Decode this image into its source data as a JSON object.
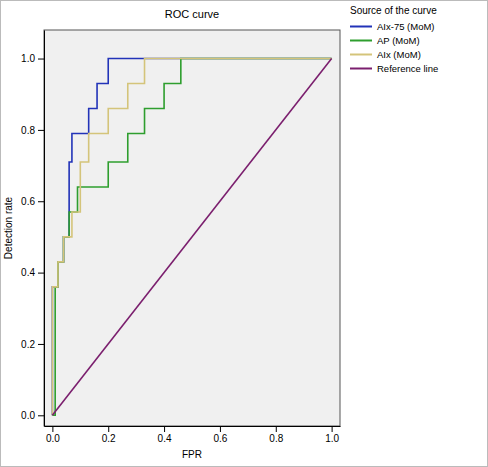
{
  "chart_data": {
    "type": "line",
    "title": "ROC curve",
    "x_label": "FPR",
    "y_label": "Detection rate",
    "legend_title": "Source of the curve",
    "legend": "outside-top-right",
    "grid": false,
    "xlim": [
      -0.03,
      1.03
    ],
    "ylim": [
      -0.03,
      1.08
    ],
    "xticks": [
      {
        "value": 0,
        "label": "0.0"
      },
      {
        "value": 0.2,
        "label": "0.2"
      },
      {
        "value": 0.4,
        "label": "0.4"
      },
      {
        "value": 0.6,
        "label": "0.6"
      },
      {
        "value": 0.8,
        "label": "0.8"
      },
      {
        "value": 1,
        "label": "1.0"
      }
    ],
    "yticks": [
      {
        "value": 0,
        "label": "0.0"
      },
      {
        "value": 0.2,
        "label": "0.2"
      },
      {
        "value": 0.4,
        "label": "0.4"
      },
      {
        "value": 0.6,
        "label": "0.6"
      },
      {
        "value": 0.8,
        "label": "0.8"
      },
      {
        "value": 1,
        "label": "1.0"
      }
    ],
    "series": [
      {
        "name": "AIx-75 (MoM)",
        "color": "#2233b8",
        "x": [
          0,
          0,
          0.02,
          0.02,
          0.04,
          0.04,
          0.06,
          0.06,
          0.07,
          0.07,
          0.13,
          0.13,
          0.16,
          0.16,
          0.2,
          0.2,
          1.0
        ],
        "values": [
          0,
          0.36,
          0.36,
          0.43,
          0.43,
          0.5,
          0.5,
          0.71,
          0.71,
          0.79,
          0.79,
          0.86,
          0.86,
          0.93,
          0.93,
          1.0,
          1.0
        ]
      },
      {
        "name": "AP (MoM)",
        "color": "#2e9e2e",
        "x": [
          0,
          0.01,
          0.01,
          0.02,
          0.02,
          0.04,
          0.04,
          0.06,
          0.06,
          0.09,
          0.09,
          0.2,
          0.2,
          0.27,
          0.27,
          0.33,
          0.33,
          0.4,
          0.4,
          0.46,
          0.46,
          1.0
        ],
        "values": [
          0,
          0,
          0.36,
          0.36,
          0.43,
          0.43,
          0.5,
          0.5,
          0.57,
          0.57,
          0.64,
          0.64,
          0.71,
          0.71,
          0.79,
          0.79,
          0.86,
          0.86,
          0.93,
          0.93,
          1.0,
          1.0
        ]
      },
      {
        "name": "AIx (MoM)",
        "color": "#d4c47a",
        "x": [
          0,
          0,
          0.02,
          0.02,
          0.04,
          0.04,
          0.07,
          0.07,
          0.1,
          0.1,
          0.13,
          0.13,
          0.2,
          0.2,
          0.27,
          0.27,
          0.33,
          0.33,
          1.0
        ],
        "values": [
          0,
          0.36,
          0.36,
          0.43,
          0.43,
          0.5,
          0.5,
          0.57,
          0.57,
          0.71,
          0.71,
          0.79,
          0.79,
          0.86,
          0.86,
          0.93,
          0.93,
          1.0,
          1.0
        ]
      },
      {
        "name": "Reference line",
        "color": "#7b1f6e",
        "x": [
          0,
          1
        ],
        "values": [
          0,
          1
        ]
      }
    ]
  }
}
